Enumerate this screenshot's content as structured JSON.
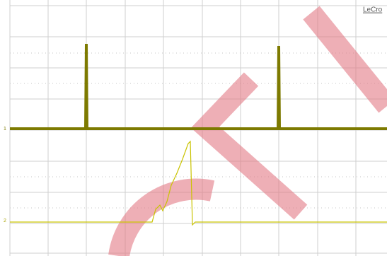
{
  "brand": "LeCro",
  "channels": [
    {
      "label": "1"
    },
    {
      "label": "2"
    }
  ]
}
